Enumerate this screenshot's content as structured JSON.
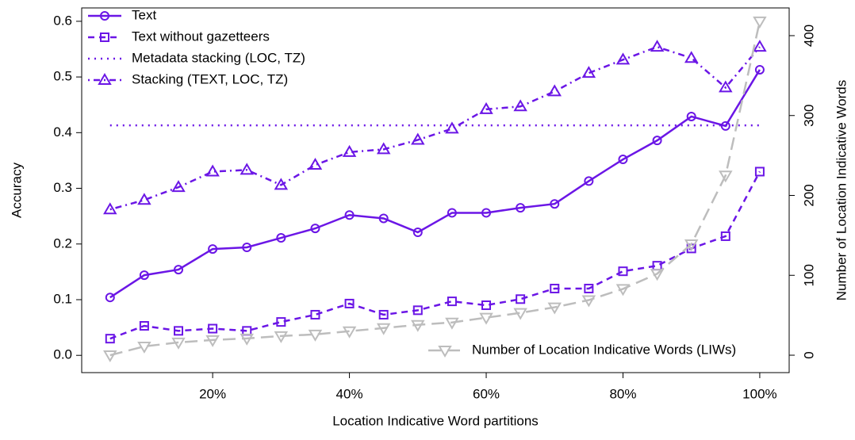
{
  "chart_data": {
    "type": "line",
    "x_label": "Location Indicative Word partitions",
    "y_label": "Accuracy",
    "y2_label": "Number of Location Indicative Words",
    "x": [
      5,
      10,
      15,
      20,
      25,
      30,
      35,
      40,
      45,
      50,
      55,
      60,
      65,
      70,
      75,
      80,
      85,
      90,
      95,
      100
    ],
    "xlim": [
      0.85,
      104.3
    ],
    "xticks": [
      {
        "value": 20,
        "label": "20%"
      },
      {
        "value": 40,
        "label": "40%"
      },
      {
        "value": 60,
        "label": "60%"
      },
      {
        "value": 80,
        "label": "80%"
      },
      {
        "value": 100,
        "label": "100%"
      }
    ],
    "ylim": [
      -0.031,
      0.624
    ],
    "yticks": [
      {
        "value": 0,
        "label": "0.0"
      },
      0.1,
      0.2,
      0.3,
      0.4,
      0.5,
      0.6
    ],
    "y2lim": [
      -21.8,
      434.7
    ],
    "y2ticks": [
      0,
      100,
      200,
      300,
      400
    ],
    "legend": "topleft",
    "y2_legend": "bottomright",
    "series": [
      {
        "name": "Text",
        "color": "#6b16e6",
        "linestyle": "solid",
        "marker": "circle",
        "values": [
          0.104,
          0.144,
          0.154,
          0.191,
          0.194,
          0.211,
          0.228,
          0.252,
          0.246,
          0.221,
          0.256,
          0.256,
          0.265,
          0.272,
          0.313,
          0.352,
          0.386,
          0.429,
          0.412,
          0.513
        ]
      },
      {
        "name": "Text without gazetteers",
        "color": "#6b16e6",
        "linestyle": "dashed",
        "marker": "square",
        "values": [
          0.03,
          0.053,
          0.044,
          0.048,
          0.044,
          0.06,
          0.073,
          0.093,
          0.073,
          0.081,
          0.097,
          0.09,
          0.101,
          0.12,
          0.12,
          0.151,
          0.161,
          0.192,
          0.214,
          0.33
        ]
      },
      {
        "name": "Metadata stacking (LOC, TZ)",
        "color": "#6b16e6",
        "linestyle": "dotted",
        "marker": "none",
        "values": [
          0.413,
          0.413,
          0.413,
          0.413,
          0.413,
          0.413,
          0.413,
          0.413,
          0.413,
          0.413,
          0.413,
          0.413,
          0.413,
          0.413,
          0.413,
          0.413,
          0.413,
          0.413,
          0.413,
          0.413
        ]
      },
      {
        "name": "Stacking (TEXT, LOC, TZ)",
        "color": "#6b16e6",
        "linestyle": "dotdash",
        "marker": "triangle",
        "values": [
          0.262,
          0.279,
          0.302,
          0.33,
          0.333,
          0.306,
          0.342,
          0.365,
          0.37,
          0.387,
          0.407,
          0.442,
          0.447,
          0.474,
          0.507,
          0.531,
          0.554,
          0.534,
          0.481,
          0.554
        ]
      },
      {
        "name": "Number of Location Indicative Words (LIWs)",
        "color": "#bdbdbd",
        "linestyle": "longdash",
        "marker": "triangle-down",
        "axis": "y2",
        "values": [
          0,
          11,
          16,
          19,
          21,
          24,
          26,
          30,
          34,
          38,
          41,
          47,
          53,
          60,
          69,
          83,
          102,
          139,
          225,
          418
        ]
      }
    ]
  }
}
